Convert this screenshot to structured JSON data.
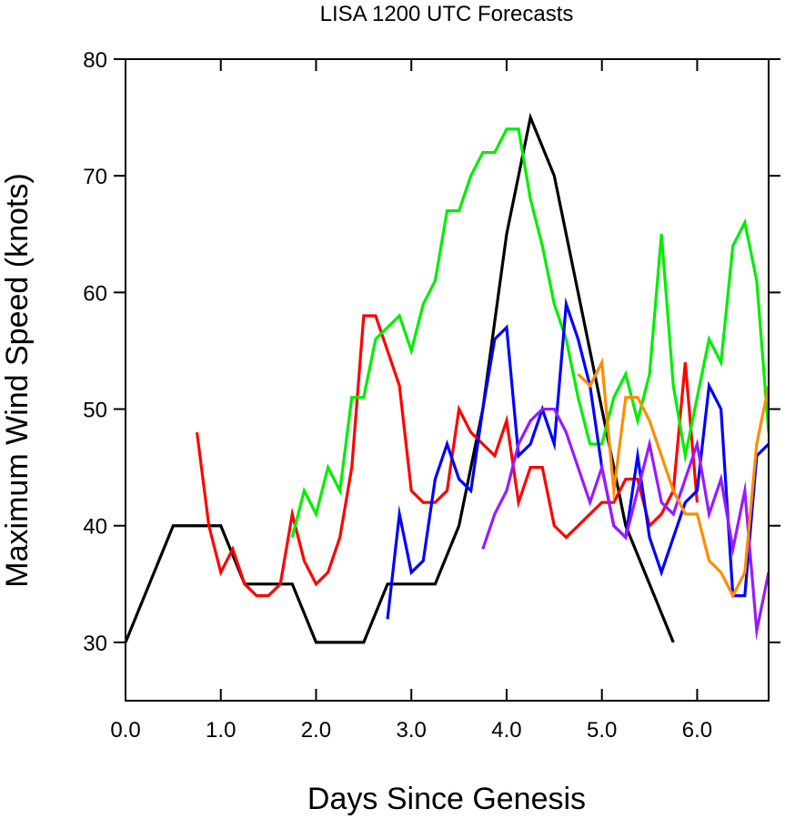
{
  "chart_data": {
    "type": "line",
    "title": "LISA 1200 UTC Forecasts",
    "xlabel": "Days Since Genesis",
    "ylabel": "Maximum Wind Speed (knots)",
    "xlim": [
      0,
      6.75
    ],
    "ylim": [
      25,
      80
    ],
    "xticks": [
      0,
      1,
      2,
      3,
      4,
      5,
      6
    ],
    "xtick_labels": [
      "0.0",
      "1.0",
      "2.0",
      "3.0",
      "4.0",
      "5.0",
      "6.0"
    ],
    "yticks": [
      30,
      40,
      50,
      60,
      70,
      80
    ],
    "ytick_labels": [
      "30",
      "40",
      "50",
      "60",
      "70",
      "80"
    ],
    "grid": false,
    "legend": "none",
    "series": [
      {
        "color": "#000000",
        "x": [
          0,
          0.5,
          1.0,
          1.25,
          1.75,
          2.0,
          2.5,
          2.75,
          3.25,
          3.5,
          3.75,
          4.0,
          4.25,
          4.5,
          4.75,
          5.0,
          5.25,
          5.5,
          5.75
        ],
        "y": [
          30,
          40,
          40,
          35,
          35,
          30,
          30,
          35,
          35,
          40,
          50,
          65,
          75,
          70,
          60,
          50,
          40,
          35,
          30
        ]
      },
      {
        "color": "#ff0000",
        "x": [
          0.75,
          0.875,
          1.0,
          1.125,
          1.25,
          1.375,
          1.5,
          1.625,
          1.75,
          1.875,
          2.0,
          2.125,
          2.25,
          2.375,
          2.5,
          2.625,
          2.75,
          2.875,
          3.0,
          3.125,
          3.25,
          3.375,
          3.5,
          3.625,
          3.75,
          3.875,
          4.0,
          4.125,
          4.25,
          4.375,
          4.5,
          4.625,
          4.75,
          4.875,
          5.0,
          5.125,
          5.25,
          5.375,
          5.5,
          5.625,
          5.75,
          5.875,
          6.0
        ],
        "y": [
          48,
          40,
          36,
          38,
          35,
          34,
          34,
          35,
          41,
          37,
          35,
          36,
          39,
          45,
          58,
          58,
          55,
          52,
          43,
          42,
          42,
          43,
          50,
          48,
          47,
          46,
          49,
          42,
          45,
          45,
          40,
          39,
          40,
          41,
          42,
          42,
          44,
          44,
          40,
          41,
          43,
          54,
          42
        ]
      },
      {
        "color": "#00ee00",
        "x": [
          1.75,
          1.875,
          2.0,
          2.125,
          2.25,
          2.375,
          2.5,
          2.625,
          2.75,
          2.875,
          3.0,
          3.125,
          3.25,
          3.375,
          3.5,
          3.625,
          3.75,
          3.875,
          4.0,
          4.125,
          4.25,
          4.375,
          4.5,
          4.625,
          4.75,
          4.875,
          5.0,
          5.125,
          5.25,
          5.375,
          5.5,
          5.625,
          5.75,
          5.875,
          6.0,
          6.125,
          6.25,
          6.375,
          6.5,
          6.625,
          6.75
        ],
        "y": [
          39,
          43,
          41,
          45,
          43,
          51,
          51,
          56,
          57,
          58,
          55,
          59,
          61,
          67,
          67,
          70,
          72,
          72,
          74,
          74,
          68,
          64,
          59,
          56,
          51,
          47,
          47,
          51,
          53,
          49,
          53,
          65,
          52,
          46,
          51,
          56,
          54,
          64,
          66,
          61,
          48
        ]
      },
      {
        "color": "#0000ff",
        "x": [
          2.75,
          2.875,
          3.0,
          3.125,
          3.25,
          3.375,
          3.5,
          3.625,
          3.75,
          3.875,
          4.0,
          4.125,
          4.25,
          4.375,
          4.5,
          4.625,
          4.75,
          4.875,
          5.0,
          5.125,
          5.25,
          5.375,
          5.5,
          5.625,
          5.75,
          5.875,
          6.0,
          6.125,
          6.25,
          6.375,
          6.5,
          6.625,
          6.75
        ],
        "y": [
          32,
          41,
          36,
          37,
          44,
          47,
          44,
          43,
          50,
          56,
          57,
          46,
          47,
          50,
          47,
          59,
          56,
          52,
          45,
          40,
          39,
          46,
          39,
          36,
          39,
          42,
          43,
          52,
          50,
          34,
          34,
          46,
          47
        ]
      },
      {
        "color": "#9a1aff",
        "x": [
          3.75,
          3.875,
          4.0,
          4.125,
          4.25,
          4.375,
          4.5,
          4.625,
          4.75,
          4.875,
          5.0,
          5.125,
          5.25,
          5.375,
          5.5,
          5.625,
          5.75,
          5.875,
          6.0,
          6.125,
          6.25,
          6.375,
          6.5,
          6.625,
          6.75
        ],
        "y": [
          38,
          41,
          43,
          47,
          49,
          50,
          50,
          48,
          45,
          42,
          45,
          40,
          39,
          43,
          47,
          42,
          41,
          44,
          47,
          41,
          44,
          38,
          43,
          31,
          36
        ]
      },
      {
        "color": "#ff8c00",
        "x": [
          4.75,
          4.875,
          5.0,
          5.125,
          5.25,
          5.375,
          5.5,
          5.625,
          5.75,
          5.875,
          6.0,
          6.125,
          6.25,
          6.375,
          6.5,
          6.625,
          6.75
        ],
        "y": [
          53,
          52,
          54,
          43,
          51,
          51,
          49,
          46,
          43,
          41,
          41,
          37,
          36,
          34,
          36,
          47,
          52
        ]
      }
    ]
  }
}
